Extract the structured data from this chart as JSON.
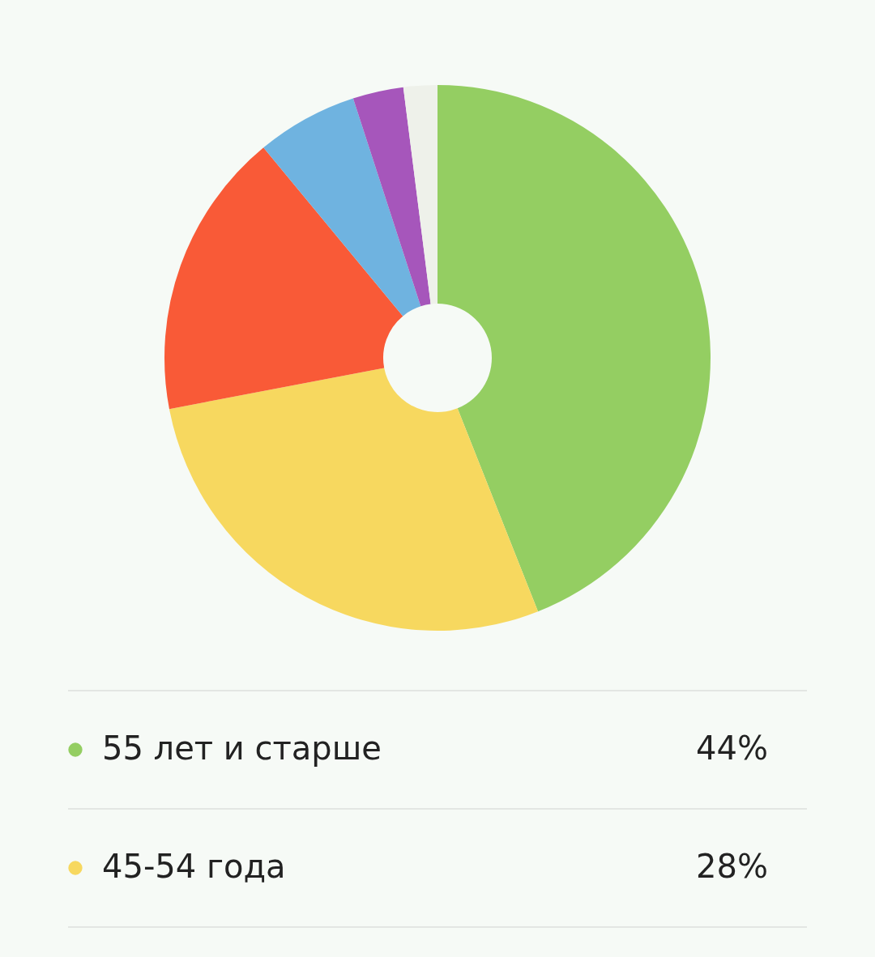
{
  "chart_data": {
    "type": "donut",
    "categories": [
      "55 лет и старше",
      "45-54 года",
      null,
      null,
      null,
      null
    ],
    "values": [
      44,
      28,
      17,
      6,
      3,
      2
    ],
    "colors": [
      "#94ce62",
      "#f7d85f",
      "#f95a37",
      "#6fb3e0",
      "#a656bb",
      "#eef1ea"
    ],
    "value_labels": [
      "44%",
      "28%",
      null,
      null,
      null,
      null
    ],
    "legend": "bottom"
  }
}
